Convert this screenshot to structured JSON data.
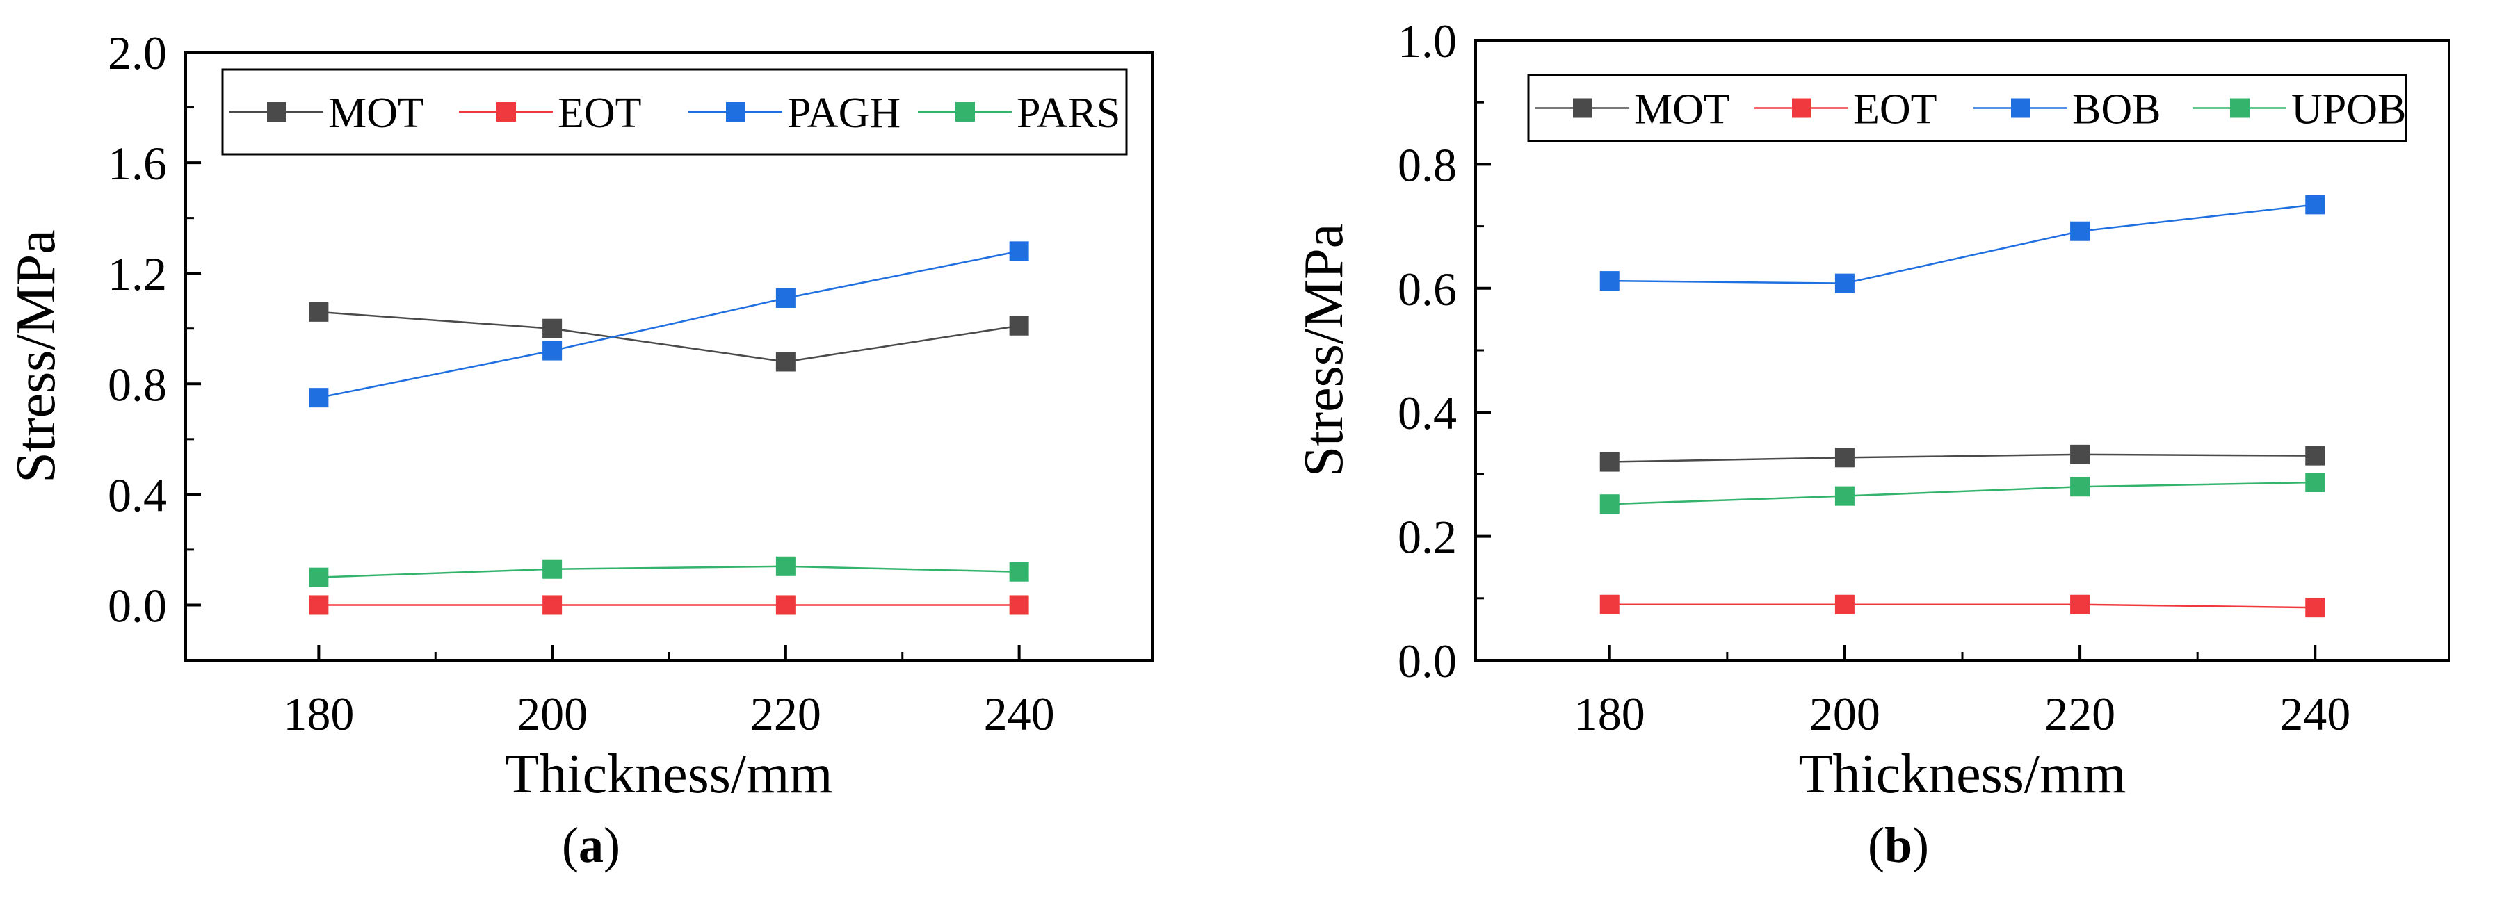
{
  "colors": {
    "MOT": "#4a4a4a",
    "EOT": "#f0393f",
    "PAGH": "#1f6fe0",
    "PARS": "#33b36b",
    "BOB": "#1f6fe0",
    "UPOB": "#33b36b",
    "axis": "#000000"
  },
  "chart_data": [
    {
      "type": "line",
      "panel_label": "a",
      "xlabel": "Thickness/mm",
      "ylabel": "Stress/MPa",
      "x": [
        180,
        200,
        220,
        240
      ],
      "xticks": [
        "180",
        "200",
        "220",
        "240"
      ],
      "yticks": [
        "0.0",
        "0.4",
        "0.8",
        "1.2",
        "1.6",
        "2.0"
      ],
      "ylim": [
        -0.2,
        2.0
      ],
      "legend_position": "top",
      "series": [
        {
          "name": "MOT",
          "values": [
            1.06,
            1.0,
            0.88,
            1.01
          ]
        },
        {
          "name": "EOT",
          "values": [
            0.0,
            0.0,
            0.0,
            0.0
          ]
        },
        {
          "name": "PAGH",
          "values": [
            0.75,
            0.92,
            1.11,
            1.28
          ]
        },
        {
          "name": "PARS",
          "values": [
            0.1,
            0.13,
            0.14,
            0.12
          ]
        }
      ]
    },
    {
      "type": "line",
      "panel_label": "b",
      "xlabel": "Thickness/mm",
      "ylabel": "Stress/MPa",
      "x": [
        180,
        200,
        220,
        240
      ],
      "xticks": [
        "180",
        "200",
        "220",
        "240"
      ],
      "yticks": [
        "0.0",
        "0.2",
        "0.4",
        "0.6",
        "0.8",
        "1.0"
      ],
      "ylim": [
        0.0,
        1.0
      ],
      "legend_position": "top",
      "series": [
        {
          "name": "MOT",
          "values": [
            0.32,
            0.327,
            0.332,
            0.33
          ]
        },
        {
          "name": "EOT",
          "values": [
            0.09,
            0.09,
            0.09,
            0.085
          ]
        },
        {
          "name": "BOB",
          "values": [
            0.612,
            0.608,
            0.692,
            0.735
          ]
        },
        {
          "name": "UPOB",
          "values": [
            0.252,
            0.265,
            0.28,
            0.287
          ]
        }
      ]
    }
  ]
}
